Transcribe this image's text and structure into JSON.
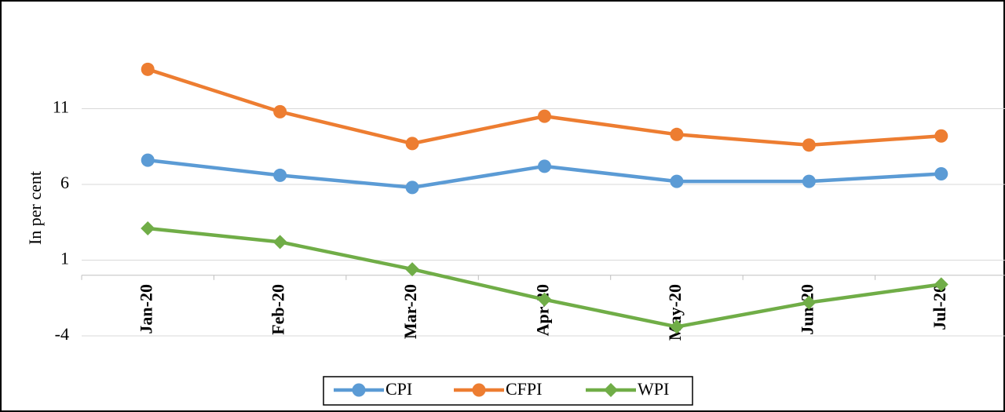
{
  "chart_data": {
    "type": "line",
    "y_label": "In per cent",
    "categories": [
      "Jan-20",
      "Feb-20",
      "Mar-20",
      "Apr-20",
      "May-20",
      "Jun-20",
      "Jul-20"
    ],
    "series": [
      {
        "name": "CPI",
        "color": "#5b9bd5",
        "marker": "circle",
        "values": [
          7.6,
          6.6,
          5.8,
          7.2,
          6.2,
          6.2,
          6.7
        ]
      },
      {
        "name": "CFPI",
        "color": "#ed7d31",
        "marker": "circle",
        "values": [
          13.6,
          10.8,
          8.7,
          10.5,
          9.3,
          8.6,
          9.2
        ]
      },
      {
        "name": "WPI",
        "color": "#70ad47",
        "marker": "diamond",
        "values": [
          3.1,
          2.2,
          0.4,
          -1.6,
          -3.4,
          -1.8,
          -0.6
        ]
      }
    ],
    "ylim": [
      -4,
      16
    ],
    "yticks": [
      -4,
      1,
      6,
      11
    ],
    "grid": true,
    "legend": "bottom"
  }
}
